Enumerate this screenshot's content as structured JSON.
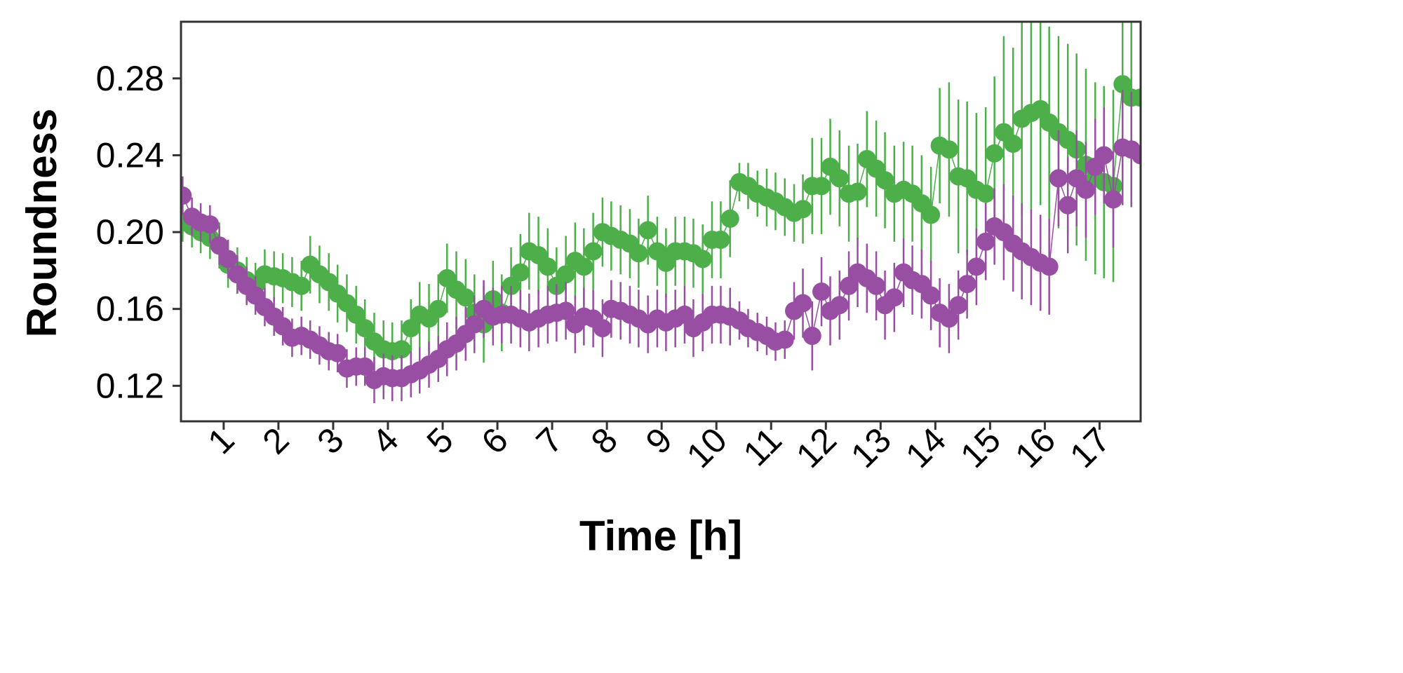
{
  "chart_data": {
    "type": "scatter",
    "xlabel": "Time [h]",
    "ylabel": "Roundness",
    "xlim": [
      0.22,
      17.75
    ],
    "ylim": [
      0.1015,
      0.3095
    ],
    "x_ticks": [
      1,
      2,
      3,
      4,
      5,
      6,
      7,
      8,
      9,
      10,
      11,
      12,
      13,
      14,
      15,
      16,
      17
    ],
    "x_tick_labels": [
      "1",
      "2",
      "3",
      "4",
      "5",
      "6",
      "7",
      "8",
      "9",
      "10",
      "11",
      "12",
      "13",
      "14",
      "15",
      "16",
      "17"
    ],
    "y_ticks": [
      0.12,
      0.16,
      0.2,
      0.24,
      0.28
    ],
    "y_tick_labels": [
      "0.12",
      "0.16",
      "0.20",
      "0.24",
      "0.28"
    ],
    "grid": false,
    "legend": "none",
    "series": [
      {
        "color": "#4daf4a",
        "error_bars": true,
        "x": [
          0.25,
          0.42,
          0.58,
          0.75,
          0.92,
          1.08,
          1.25,
          1.42,
          1.58,
          1.75,
          1.92,
          2.08,
          2.25,
          2.42,
          2.58,
          2.75,
          2.92,
          3.08,
          3.25,
          3.42,
          3.58,
          3.75,
          3.92,
          4.08,
          4.25,
          4.42,
          4.58,
          4.75,
          4.92,
          5.08,
          5.25,
          5.42,
          5.58,
          5.75,
          5.92,
          6.08,
          6.25,
          6.42,
          6.58,
          6.75,
          6.92,
          7.08,
          7.25,
          7.42,
          7.58,
          7.75,
          7.92,
          8.08,
          8.25,
          8.42,
          8.58,
          8.75,
          8.92,
          9.08,
          9.25,
          9.42,
          9.58,
          9.75,
          9.92,
          10.08,
          10.25,
          10.42,
          10.58,
          10.75,
          10.92,
          11.08,
          11.25,
          11.42,
          11.58,
          11.75,
          11.92,
          12.08,
          12.25,
          12.42,
          12.58,
          12.75,
          12.92,
          13.08,
          13.25,
          13.42,
          13.58,
          13.75,
          13.92,
          14.08,
          14.25,
          14.42,
          14.58,
          14.75,
          14.92,
          15.08,
          15.25,
          15.42,
          15.58,
          15.75,
          15.92,
          16.08,
          16.25,
          16.42,
          16.58,
          16.75,
          16.92,
          17.08,
          17.25,
          17.42,
          17.58,
          17.75
        ],
        "y": [
          0.205,
          0.203,
          0.2,
          0.197,
          0.193,
          0.183,
          0.18,
          0.175,
          0.172,
          0.178,
          0.177,
          0.176,
          0.174,
          0.172,
          0.183,
          0.178,
          0.174,
          0.168,
          0.163,
          0.157,
          0.15,
          0.143,
          0.139,
          0.138,
          0.139,
          0.15,
          0.157,
          0.155,
          0.16,
          0.176,
          0.17,
          0.166,
          0.158,
          0.152,
          0.165,
          0.158,
          0.172,
          0.179,
          0.19,
          0.188,
          0.182,
          0.172,
          0.178,
          0.185,
          0.182,
          0.19,
          0.2,
          0.198,
          0.196,
          0.194,
          0.189,
          0.201,
          0.19,
          0.184,
          0.19,
          0.19,
          0.189,
          0.186,
          0.196,
          0.196,
          0.207,
          0.226,
          0.224,
          0.22,
          0.218,
          0.216,
          0.213,
          0.21,
          0.212,
          0.224,
          0.224,
          0.234,
          0.228,
          0.22,
          0.221,
          0.238,
          0.233,
          0.227,
          0.22,
          0.222,
          0.22,
          0.215,
          0.209,
          0.245,
          0.243,
          0.229,
          0.228,
          0.222,
          0.22,
          0.241,
          0.252,
          0.246,
          0.259,
          0.262,
          0.264,
          0.257,
          0.252,
          0.248,
          0.243,
          0.235,
          0.228,
          0.226,
          0.224,
          0.277,
          0.27,
          0.27
        ],
        "err": [
          0.01,
          0.011,
          0.011,
          0.011,
          0.012,
          0.012,
          0.012,
          0.012,
          0.012,
          0.013,
          0.013,
          0.013,
          0.013,
          0.013,
          0.015,
          0.015,
          0.015,
          0.015,
          0.015,
          0.015,
          0.015,
          0.015,
          0.015,
          0.015,
          0.015,
          0.015,
          0.017,
          0.018,
          0.018,
          0.018,
          0.02,
          0.02,
          0.02,
          0.02,
          0.02,
          0.02,
          0.02,
          0.02,
          0.02,
          0.02,
          0.02,
          0.02,
          0.02,
          0.02,
          0.02,
          0.02,
          0.018,
          0.018,
          0.018,
          0.018,
          0.018,
          0.018,
          0.018,
          0.018,
          0.018,
          0.018,
          0.018,
          0.018,
          0.02,
          0.02,
          0.02,
          0.01,
          0.012,
          0.012,
          0.015,
          0.015,
          0.015,
          0.015,
          0.018,
          0.025,
          0.025,
          0.025,
          0.025,
          0.025,
          0.025,
          0.025,
          0.025,
          0.025,
          0.025,
          0.025,
          0.025,
          0.025,
          0.025,
          0.03,
          0.035,
          0.04,
          0.04,
          0.04,
          0.045,
          0.04,
          0.05,
          0.05,
          0.05,
          0.05,
          0.05,
          0.05,
          0.05,
          0.05,
          0.05,
          0.05,
          0.05,
          0.05,
          0.05,
          0.05,
          0.05,
          0.05
        ]
      },
      {
        "color": "#984ea3",
        "error_bars": true,
        "x": [
          0.25,
          0.42,
          0.58,
          0.75,
          0.92,
          1.08,
          1.25,
          1.42,
          1.58,
          1.75,
          1.92,
          2.08,
          2.25,
          2.42,
          2.58,
          2.75,
          2.92,
          3.08,
          3.25,
          3.42,
          3.58,
          3.75,
          3.92,
          4.08,
          4.25,
          4.42,
          4.58,
          4.75,
          4.92,
          5.08,
          5.25,
          5.42,
          5.58,
          5.75,
          5.92,
          6.08,
          6.25,
          6.42,
          6.58,
          6.75,
          6.92,
          7.08,
          7.25,
          7.42,
          7.58,
          7.75,
          7.92,
          8.08,
          8.25,
          8.42,
          8.58,
          8.75,
          8.92,
          9.08,
          9.25,
          9.42,
          9.58,
          9.75,
          9.92,
          10.08,
          10.25,
          10.42,
          10.58,
          10.75,
          10.92,
          11.08,
          11.25,
          11.42,
          11.58,
          11.75,
          11.92,
          12.08,
          12.25,
          12.42,
          12.58,
          12.75,
          12.92,
          13.08,
          13.25,
          13.42,
          13.58,
          13.75,
          13.92,
          14.08,
          14.25,
          14.42,
          14.58,
          14.75,
          14.92,
          15.08,
          15.25,
          15.42,
          15.58,
          15.75,
          15.92,
          16.08,
          16.25,
          16.42,
          16.58,
          16.75,
          16.92,
          17.08,
          17.25,
          17.42,
          17.58,
          17.75
        ],
        "y": [
          0.219,
          0.208,
          0.205,
          0.204,
          0.193,
          0.186,
          0.178,
          0.172,
          0.167,
          0.161,
          0.156,
          0.151,
          0.145,
          0.146,
          0.144,
          0.141,
          0.138,
          0.137,
          0.129,
          0.13,
          0.13,
          0.123,
          0.125,
          0.124,
          0.124,
          0.126,
          0.128,
          0.131,
          0.134,
          0.139,
          0.142,
          0.147,
          0.152,
          0.16,
          0.156,
          0.157,
          0.157,
          0.155,
          0.153,
          0.155,
          0.157,
          0.158,
          0.159,
          0.152,
          0.156,
          0.155,
          0.15,
          0.16,
          0.159,
          0.157,
          0.155,
          0.152,
          0.155,
          0.153,
          0.155,
          0.157,
          0.15,
          0.153,
          0.157,
          0.157,
          0.156,
          0.154,
          0.15,
          0.148,
          0.146,
          0.143,
          0.144,
          0.159,
          0.163,
          0.146,
          0.169,
          0.159,
          0.162,
          0.172,
          0.179,
          0.176,
          0.172,
          0.162,
          0.166,
          0.179,
          0.175,
          0.173,
          0.167,
          0.158,
          0.155,
          0.162,
          0.173,
          0.182,
          0.195,
          0.203,
          0.2,
          0.194,
          0.19,
          0.187,
          0.184,
          0.182,
          0.228,
          0.214,
          0.228,
          0.222,
          0.234,
          0.24,
          0.217,
          0.244,
          0.243,
          0.24
        ],
        "err": [
          0.01,
          0.01,
          0.01,
          0.01,
          0.01,
          0.01,
          0.01,
          0.01,
          0.01,
          0.01,
          0.01,
          0.01,
          0.01,
          0.01,
          0.01,
          0.01,
          0.01,
          0.01,
          0.01,
          0.01,
          0.01,
          0.012,
          0.012,
          0.012,
          0.012,
          0.012,
          0.012,
          0.012,
          0.012,
          0.014,
          0.014,
          0.014,
          0.015,
          0.015,
          0.015,
          0.015,
          0.015,
          0.015,
          0.015,
          0.015,
          0.015,
          0.015,
          0.015,
          0.015,
          0.015,
          0.015,
          0.015,
          0.015,
          0.015,
          0.015,
          0.015,
          0.015,
          0.015,
          0.015,
          0.015,
          0.015,
          0.015,
          0.015,
          0.015,
          0.015,
          0.015,
          0.01,
          0.01,
          0.01,
          0.01,
          0.01,
          0.01,
          0.015,
          0.018,
          0.018,
          0.018,
          0.018,
          0.018,
          0.018,
          0.018,
          0.018,
          0.018,
          0.018,
          0.018,
          0.018,
          0.018,
          0.018,
          0.018,
          0.018,
          0.018,
          0.018,
          0.018,
          0.02,
          0.02,
          0.02,
          0.025,
          0.025,
          0.025,
          0.025,
          0.025,
          0.025,
          0.025,
          0.025,
          0.025,
          0.025,
          0.025,
          0.025,
          0.025,
          0.03,
          0.03,
          0.03
        ]
      }
    ]
  }
}
